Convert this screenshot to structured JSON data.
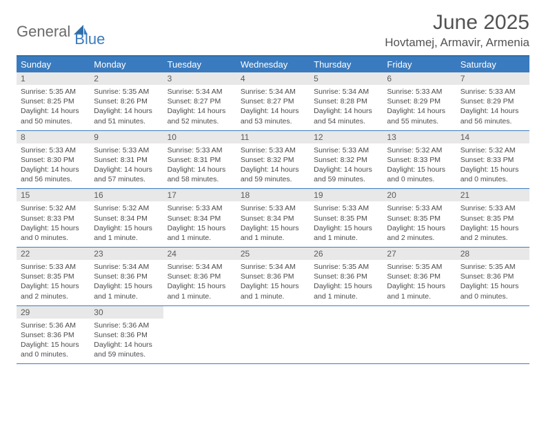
{
  "logo": {
    "general": "General",
    "blue": "Blue"
  },
  "title": "June 2025",
  "location": "Hovtamej, Armavir, Armenia",
  "colors": {
    "header_bg": "#3a7bbf",
    "header_border": "#2f6fa8",
    "daynum_bg": "#e8e8e8",
    "text": "#4a4a4a",
    "title_text": "#525252",
    "logo_gray": "#6a6a6a",
    "logo_blue": "#3a7bbf"
  },
  "weekdays": [
    "Sunday",
    "Monday",
    "Tuesday",
    "Wednesday",
    "Thursday",
    "Friday",
    "Saturday"
  ],
  "weeks": [
    [
      {
        "n": "1",
        "sr": "Sunrise: 5:35 AM",
        "ss": "Sunset: 8:25 PM",
        "d1": "Daylight: 14 hours",
        "d2": "and 50 minutes."
      },
      {
        "n": "2",
        "sr": "Sunrise: 5:35 AM",
        "ss": "Sunset: 8:26 PM",
        "d1": "Daylight: 14 hours",
        "d2": "and 51 minutes."
      },
      {
        "n": "3",
        "sr": "Sunrise: 5:34 AM",
        "ss": "Sunset: 8:27 PM",
        "d1": "Daylight: 14 hours",
        "d2": "and 52 minutes."
      },
      {
        "n": "4",
        "sr": "Sunrise: 5:34 AM",
        "ss": "Sunset: 8:27 PM",
        "d1": "Daylight: 14 hours",
        "d2": "and 53 minutes."
      },
      {
        "n": "5",
        "sr": "Sunrise: 5:34 AM",
        "ss": "Sunset: 8:28 PM",
        "d1": "Daylight: 14 hours",
        "d2": "and 54 minutes."
      },
      {
        "n": "6",
        "sr": "Sunrise: 5:33 AM",
        "ss": "Sunset: 8:29 PM",
        "d1": "Daylight: 14 hours",
        "d2": "and 55 minutes."
      },
      {
        "n": "7",
        "sr": "Sunrise: 5:33 AM",
        "ss": "Sunset: 8:29 PM",
        "d1": "Daylight: 14 hours",
        "d2": "and 56 minutes."
      }
    ],
    [
      {
        "n": "8",
        "sr": "Sunrise: 5:33 AM",
        "ss": "Sunset: 8:30 PM",
        "d1": "Daylight: 14 hours",
        "d2": "and 56 minutes."
      },
      {
        "n": "9",
        "sr": "Sunrise: 5:33 AM",
        "ss": "Sunset: 8:31 PM",
        "d1": "Daylight: 14 hours",
        "d2": "and 57 minutes."
      },
      {
        "n": "10",
        "sr": "Sunrise: 5:33 AM",
        "ss": "Sunset: 8:31 PM",
        "d1": "Daylight: 14 hours",
        "d2": "and 58 minutes."
      },
      {
        "n": "11",
        "sr": "Sunrise: 5:33 AM",
        "ss": "Sunset: 8:32 PM",
        "d1": "Daylight: 14 hours",
        "d2": "and 59 minutes."
      },
      {
        "n": "12",
        "sr": "Sunrise: 5:33 AM",
        "ss": "Sunset: 8:32 PM",
        "d1": "Daylight: 14 hours",
        "d2": "and 59 minutes."
      },
      {
        "n": "13",
        "sr": "Sunrise: 5:32 AM",
        "ss": "Sunset: 8:33 PM",
        "d1": "Daylight: 15 hours",
        "d2": "and 0 minutes."
      },
      {
        "n": "14",
        "sr": "Sunrise: 5:32 AM",
        "ss": "Sunset: 8:33 PM",
        "d1": "Daylight: 15 hours",
        "d2": "and 0 minutes."
      }
    ],
    [
      {
        "n": "15",
        "sr": "Sunrise: 5:32 AM",
        "ss": "Sunset: 8:33 PM",
        "d1": "Daylight: 15 hours",
        "d2": "and 0 minutes."
      },
      {
        "n": "16",
        "sr": "Sunrise: 5:32 AM",
        "ss": "Sunset: 8:34 PM",
        "d1": "Daylight: 15 hours",
        "d2": "and 1 minute."
      },
      {
        "n": "17",
        "sr": "Sunrise: 5:33 AM",
        "ss": "Sunset: 8:34 PM",
        "d1": "Daylight: 15 hours",
        "d2": "and 1 minute."
      },
      {
        "n": "18",
        "sr": "Sunrise: 5:33 AM",
        "ss": "Sunset: 8:34 PM",
        "d1": "Daylight: 15 hours",
        "d2": "and 1 minute."
      },
      {
        "n": "19",
        "sr": "Sunrise: 5:33 AM",
        "ss": "Sunset: 8:35 PM",
        "d1": "Daylight: 15 hours",
        "d2": "and 1 minute."
      },
      {
        "n": "20",
        "sr": "Sunrise: 5:33 AM",
        "ss": "Sunset: 8:35 PM",
        "d1": "Daylight: 15 hours",
        "d2": "and 2 minutes."
      },
      {
        "n": "21",
        "sr": "Sunrise: 5:33 AM",
        "ss": "Sunset: 8:35 PM",
        "d1": "Daylight: 15 hours",
        "d2": "and 2 minutes."
      }
    ],
    [
      {
        "n": "22",
        "sr": "Sunrise: 5:33 AM",
        "ss": "Sunset: 8:35 PM",
        "d1": "Daylight: 15 hours",
        "d2": "and 2 minutes."
      },
      {
        "n": "23",
        "sr": "Sunrise: 5:34 AM",
        "ss": "Sunset: 8:36 PM",
        "d1": "Daylight: 15 hours",
        "d2": "and 1 minute."
      },
      {
        "n": "24",
        "sr": "Sunrise: 5:34 AM",
        "ss": "Sunset: 8:36 PM",
        "d1": "Daylight: 15 hours",
        "d2": "and 1 minute."
      },
      {
        "n": "25",
        "sr": "Sunrise: 5:34 AM",
        "ss": "Sunset: 8:36 PM",
        "d1": "Daylight: 15 hours",
        "d2": "and 1 minute."
      },
      {
        "n": "26",
        "sr": "Sunrise: 5:35 AM",
        "ss": "Sunset: 8:36 PM",
        "d1": "Daylight: 15 hours",
        "d2": "and 1 minute."
      },
      {
        "n": "27",
        "sr": "Sunrise: 5:35 AM",
        "ss": "Sunset: 8:36 PM",
        "d1": "Daylight: 15 hours",
        "d2": "and 1 minute."
      },
      {
        "n": "28",
        "sr": "Sunrise: 5:35 AM",
        "ss": "Sunset: 8:36 PM",
        "d1": "Daylight: 15 hours",
        "d2": "and 0 minutes."
      }
    ],
    [
      {
        "n": "29",
        "sr": "Sunrise: 5:36 AM",
        "ss": "Sunset: 8:36 PM",
        "d1": "Daylight: 15 hours",
        "d2": "and 0 minutes."
      },
      {
        "n": "30",
        "sr": "Sunrise: 5:36 AM",
        "ss": "Sunset: 8:36 PM",
        "d1": "Daylight: 14 hours",
        "d2": "and 59 minutes."
      },
      {
        "empty": true
      },
      {
        "empty": true
      },
      {
        "empty": true
      },
      {
        "empty": true
      },
      {
        "empty": true
      }
    ]
  ]
}
